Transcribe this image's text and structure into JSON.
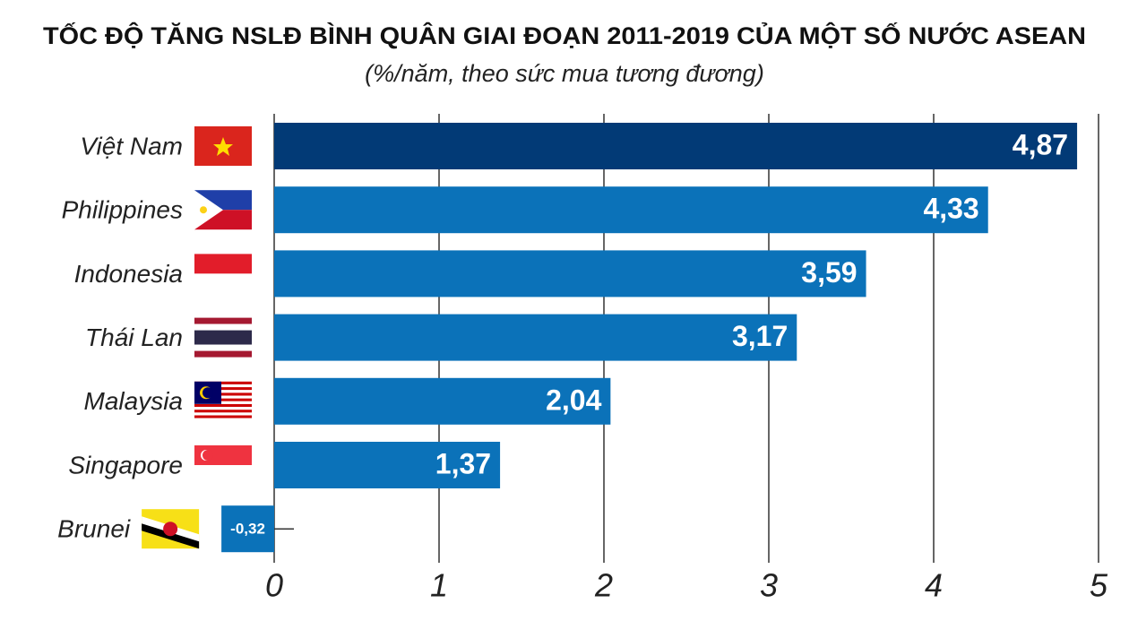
{
  "chart_data": {
    "type": "hbar",
    "title": "TỐC ĐỘ TĂNG NSLĐ BÌNH QUÂN GIAI ĐOẠN 2011-2019 CỦA MỘT SỐ NƯỚC ASEAN",
    "subtitle": "(%/năm, theo sức mua tương đương)",
    "categories": [
      "Việt Nam",
      "Philippines",
      "Indonesia",
      "Thái Lan",
      "Malaysia",
      "Singapore",
      "Brunei"
    ],
    "values": [
      4.87,
      4.33,
      3.59,
      3.17,
      2.04,
      1.37,
      -0.32
    ],
    "value_labels": [
      "4,87",
      "4,33",
      "3,59",
      "3,17",
      "2,04",
      "1,37",
      "-0,32"
    ],
    "colors": [
      "#023a76",
      "#0b72b9",
      "#0b72b9",
      "#0b72b9",
      "#0b72b9",
      "#0b72b9",
      "#0b72b9"
    ],
    "xlim": [
      0,
      5
    ],
    "xticks": [
      0,
      1,
      2,
      3,
      4,
      5
    ],
    "grid": true
  }
}
